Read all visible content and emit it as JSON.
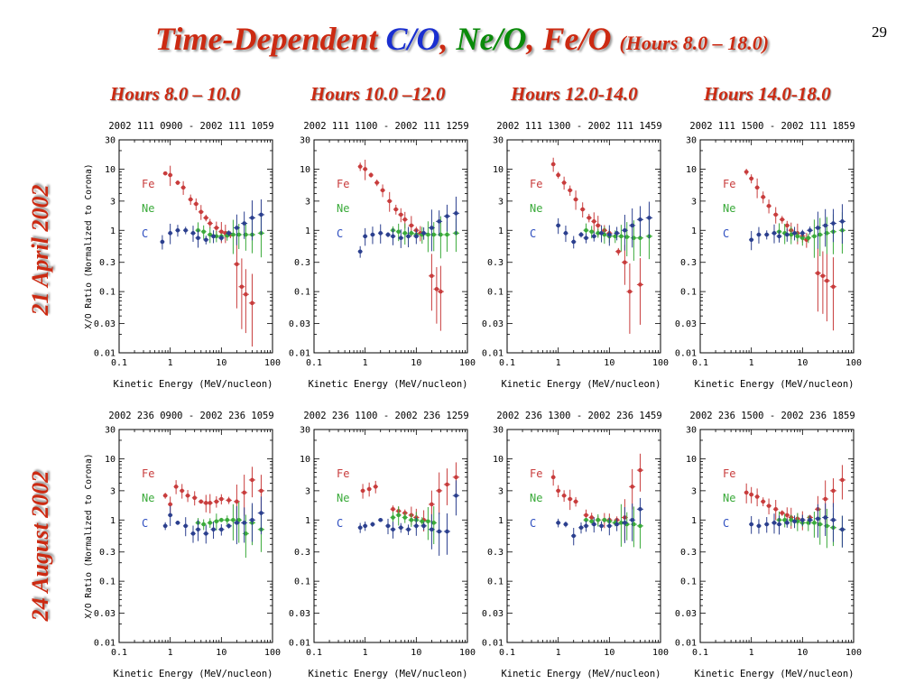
{
  "slide": {
    "title_prefix": "Time-Dependent",
    "title_co": "C/O",
    "title_sep1": ",",
    "title_ne": "Ne/O",
    "title_sep2": ",",
    "title_fe": "Fe/O",
    "title_hours": "(Hours 8.0 – 18.0)",
    "page_number": "29",
    "column_headers": [
      "Hours 8.0 – 10.0",
      "Hours 10.0 –12.0",
      "Hours 12.0-14.0",
      "Hours 14.0-18.0"
    ],
    "row_labels": [
      "21 April 2002",
      "24 August 2002"
    ]
  },
  "colors": {
    "title": "#cc2a12",
    "Fe": "#c83c3c",
    "Ne": "#3aaa3a",
    "C": "#2b3f8e",
    "C_label": "#3050c0",
    "axis": "#000000"
  },
  "axis_text": {
    "xlabel": "Kinetic Energy (MeV/nucleon)",
    "ylabel": "X/O Ratio (Normalized to Corona)",
    "x_ticks": [
      "0.1",
      "1",
      "10",
      "100"
    ],
    "y_ticks": [
      "30",
      "10",
      "3",
      "1",
      "0.3",
      "0.1",
      "0.03",
      "0.01"
    ],
    "element_labels": [
      "Fe",
      "Ne",
      "C"
    ]
  },
  "chart_data": [
    {
      "type": "scatter",
      "title": "2002 111 0900 - 2002 111 1059",
      "xlabel": "Kinetic Energy (MeV/nucleon)",
      "ylabel": "X/O Ratio (Normalized to Corona)",
      "xscale": "log",
      "yscale": "log",
      "xlim": [
        0.1,
        100
      ],
      "ylim": [
        0.01,
        30
      ],
      "series": [
        {
          "name": "Fe",
          "x": [
            0.8,
            1.0,
            1.4,
            1.8,
            2.5,
            3.2,
            4.0,
            5.0,
            6.0,
            8.0,
            10,
            12,
            15,
            20,
            25,
            30,
            40
          ],
          "y": [
            8.5,
            8,
            6,
            5,
            3.2,
            2.7,
            2.0,
            1.6,
            1.3,
            1.1,
            0.95,
            0.9,
            0.85,
            0.28,
            0.12,
            0.09,
            0.065
          ]
        },
        {
          "name": "Ne",
          "x": [
            3.5,
            4.5,
            6,
            8,
            10,
            13,
            17,
            22,
            30,
            40,
            60
          ],
          "y": [
            1.0,
            0.95,
            0.85,
            0.8,
            0.8,
            0.82,
            0.85,
            0.85,
            0.85,
            0.85,
            0.9
          ]
        },
        {
          "name": "C",
          "x": [
            0.7,
            1.0,
            1.4,
            2.0,
            2.8,
            3.5,
            5.0,
            7.0,
            10,
            14,
            20,
            28,
            40,
            60
          ],
          "y": [
            0.65,
            0.9,
            1.0,
            1.0,
            0.9,
            0.75,
            0.7,
            0.8,
            0.75,
            0.9,
            1.1,
            1.3,
            1.6,
            1.8
          ]
        }
      ]
    },
    {
      "type": "scatter",
      "title": "2002 111 1100 - 2002 111 1259",
      "xlabel": "Kinetic Energy (MeV/nucleon)",
      "ylabel": "X/O Ratio (Normalized to Corona)",
      "xscale": "log",
      "yscale": "log",
      "xlim": [
        0.1,
        100
      ],
      "ylim": [
        0.01,
        30
      ],
      "series": [
        {
          "name": "Fe",
          "x": [
            0.8,
            1.0,
            1.3,
            1.7,
            2.2,
            3.0,
            4.0,
            5.0,
            6.0,
            8.0,
            10,
            12,
            20,
            25,
            30
          ],
          "y": [
            11,
            10,
            8,
            6,
            4.5,
            3.0,
            2.2,
            1.8,
            1.5,
            1.2,
            1.0,
            0.9,
            0.18,
            0.11,
            0.1
          ]
        },
        {
          "name": "Ne",
          "x": [
            3.5,
            4.5,
            6,
            8,
            10,
            13,
            17,
            22,
            30,
            40,
            60
          ],
          "y": [
            1.0,
            0.95,
            0.9,
            0.9,
            0.85,
            0.85,
            0.85,
            0.85,
            0.85,
            0.85,
            0.9
          ]
        },
        {
          "name": "C",
          "x": [
            0.8,
            1.0,
            1.4,
            2.0,
            2.8,
            3.5,
            5.0,
            7.0,
            10,
            14,
            20,
            28,
            40,
            60
          ],
          "y": [
            0.45,
            0.8,
            0.85,
            0.9,
            0.85,
            0.8,
            0.75,
            0.8,
            0.8,
            0.9,
            1.1,
            1.4,
            1.7,
            1.9
          ]
        }
      ]
    },
    {
      "type": "scatter",
      "title": "2002 111 1300 - 2002 111 1459",
      "xlabel": "Kinetic Energy (MeV/nucleon)",
      "ylabel": "X/O Ratio (Normalized to Corona)",
      "xscale": "log",
      "yscale": "log",
      "xlim": [
        0.1,
        100
      ],
      "ylim": [
        0.01,
        30
      ],
      "series": [
        {
          "name": "Fe",
          "x": [
            0.8,
            1.0,
            1.3,
            1.7,
            2.2,
            3.0,
            4.0,
            5.0,
            6.0,
            8.0,
            10,
            15,
            20,
            25,
            40
          ],
          "y": [
            12,
            8,
            6,
            4.5,
            3.2,
            2.2,
            1.6,
            1.4,
            1.2,
            1.0,
            0.9,
            0.45,
            0.3,
            0.1,
            0.13
          ]
        },
        {
          "name": "Ne",
          "x": [
            3.5,
            4.5,
            6,
            8,
            10,
            13,
            17,
            22,
            30,
            40,
            60
          ],
          "y": [
            1.0,
            0.95,
            0.9,
            0.85,
            0.8,
            0.8,
            0.8,
            0.78,
            0.75,
            0.75,
            0.8
          ]
        },
        {
          "name": "C",
          "x": [
            1.0,
            1.4,
            2.0,
            2.8,
            3.5,
            5.0,
            7.0,
            10,
            14,
            20,
            28,
            40,
            60
          ],
          "y": [
            1.2,
            0.9,
            0.65,
            0.85,
            0.75,
            0.8,
            0.9,
            0.85,
            0.9,
            1.0,
            1.2,
            1.5,
            1.6
          ]
        }
      ]
    },
    {
      "type": "scatter",
      "title": "2002 111 1500 - 2002 111 1859",
      "xlabel": "Kinetic Energy (MeV/nucleon)",
      "ylabel": "X/O Ratio (Normalized to Corona)",
      "xscale": "log",
      "yscale": "log",
      "xlim": [
        0.1,
        100
      ],
      "ylim": [
        0.01,
        30
      ],
      "series": [
        {
          "name": "Fe",
          "x": [
            0.8,
            1.0,
            1.3,
            1.7,
            2.2,
            3.0,
            4.0,
            5.0,
            6.0,
            8.0,
            10,
            12,
            20,
            25,
            30,
            40
          ],
          "y": [
            9,
            7,
            5,
            3.5,
            2.5,
            1.8,
            1.5,
            1.2,
            1.0,
            0.9,
            0.8,
            0.7,
            0.2,
            0.18,
            0.15,
            0.12
          ]
        },
        {
          "name": "Ne",
          "x": [
            3.5,
            4.5,
            6,
            8,
            10,
            13,
            17,
            22,
            30,
            40,
            60
          ],
          "y": [
            0.95,
            0.9,
            0.85,
            0.8,
            0.75,
            0.75,
            0.8,
            0.85,
            0.9,
            0.95,
            1.0
          ]
        },
        {
          "name": "C",
          "x": [
            1.0,
            1.4,
            2.0,
            2.8,
            3.5,
            5.0,
            7.0,
            10,
            14,
            20,
            28,
            40,
            60
          ],
          "y": [
            0.7,
            0.85,
            0.85,
            0.9,
            0.8,
            0.85,
            0.9,
            0.9,
            1.0,
            1.1,
            1.2,
            1.3,
            1.4
          ]
        }
      ]
    },
    {
      "type": "scatter",
      "title": "2002 236 0900 - 2002 236 1059",
      "xlabel": "Kinetic Energy (MeV/nucleon)",
      "ylabel": "X/O Ratio (Normalized to Corona)",
      "xscale": "log",
      "yscale": "log",
      "xlim": [
        0.1,
        100
      ],
      "ylim": [
        0.01,
        30
      ],
      "series": [
        {
          "name": "Fe",
          "x": [
            0.8,
            1.0,
            1.3,
            1.7,
            2.2,
            3.0,
            4.0,
            5.0,
            6.0,
            8.0,
            10,
            14,
            20,
            28,
            40,
            60
          ],
          "y": [
            2.5,
            1.8,
            3.5,
            3.0,
            2.5,
            2.3,
            2.0,
            1.9,
            1.9,
            2.0,
            2.2,
            2.1,
            2.0,
            2.8,
            4.5,
            3.0
          ]
        },
        {
          "name": "Ne",
          "x": [
            3.5,
            4.5,
            6,
            8,
            10,
            13,
            17,
            22,
            30,
            40,
            60
          ],
          "y": [
            0.9,
            0.85,
            0.9,
            0.95,
            1.0,
            1.0,
            1.0,
            1.0,
            0.6,
            0.9,
            0.7
          ]
        },
        {
          "name": "C",
          "x": [
            0.8,
            1.0,
            1.4,
            2.0,
            2.8,
            3.5,
            5.0,
            7.0,
            10,
            14,
            20,
            28,
            40,
            60
          ],
          "y": [
            0.8,
            1.2,
            0.9,
            0.8,
            0.6,
            0.7,
            0.6,
            0.7,
            0.7,
            0.8,
            0.9,
            0.9,
            1.0,
            1.3
          ]
        }
      ]
    },
    {
      "type": "scatter",
      "title": "2002 236 1100 - 2002 236 1259",
      "xlabel": "Kinetic Energy (MeV/nucleon)",
      "ylabel": "X/O Ratio (Normalized to Corona)",
      "xscale": "log",
      "yscale": "log",
      "xlim": [
        0.1,
        100
      ],
      "ylim": [
        0.01,
        30
      ],
      "series": [
        {
          "name": "Fe",
          "x": [
            0.9,
            1.2,
            1.6,
            3.5,
            4.5,
            6,
            8,
            10,
            14,
            20,
            28,
            40,
            60
          ],
          "y": [
            3.0,
            3.2,
            3.5,
            1.5,
            1.4,
            1.3,
            1.2,
            1.1,
            1.0,
            1.8,
            3.0,
            3.8,
            5.0
          ]
        },
        {
          "name": "Ne",
          "x": [
            3.5,
            4.5,
            6,
            8,
            10,
            13,
            17,
            22
          ],
          "y": [
            1.1,
            1.2,
            1.1,
            1.0,
            1.0,
            0.95,
            0.95,
            0.9
          ]
        },
        {
          "name": "C",
          "x": [
            0.8,
            1.0,
            1.4,
            2.0,
            2.8,
            3.5,
            5.0,
            7.0,
            10,
            14,
            20,
            28,
            40,
            60
          ],
          "y": [
            0.75,
            0.8,
            0.85,
            1.0,
            0.8,
            0.7,
            0.75,
            0.7,
            0.8,
            0.8,
            0.7,
            0.65,
            0.65,
            2.5
          ]
        }
      ]
    },
    {
      "type": "scatter",
      "title": "2002 236 1300 - 2002 236 1459",
      "xlabel": "Kinetic Energy (MeV/nucleon)",
      "ylabel": "X/O Ratio (Normalized to Corona)",
      "xscale": "log",
      "yscale": "log",
      "xlim": [
        0.1,
        100
      ],
      "ylim": [
        0.01,
        30
      ],
      "series": [
        {
          "name": "Fe",
          "x": [
            0.8,
            1.0,
            1.3,
            1.7,
            2.2,
            3.5,
            4.5,
            6,
            8,
            10,
            14,
            20,
            28,
            40
          ],
          "y": [
            5.0,
            3.0,
            2.5,
            2.2,
            2.0,
            1.2,
            1.1,
            1.0,
            1.0,
            1.0,
            1.0,
            1.1,
            3.5,
            6.5
          ]
        },
        {
          "name": "Ne",
          "x": [
            3.5,
            4.5,
            6,
            8,
            10,
            13,
            17,
            22,
            30,
            40
          ],
          "y": [
            1.0,
            0.95,
            1.0,
            1.0,
            0.95,
            0.9,
            0.9,
            0.85,
            0.85,
            0.8
          ]
        },
        {
          "name": "C",
          "x": [
            1.0,
            1.4,
            2.0,
            2.8,
            3.5,
            5.0,
            7.0,
            10,
            14,
            20,
            28,
            40
          ],
          "y": [
            0.9,
            0.85,
            0.55,
            0.75,
            0.8,
            0.85,
            0.8,
            0.8,
            0.85,
            0.9,
            1.0,
            1.5
          ]
        }
      ]
    },
    {
      "type": "scatter",
      "title": "2002 236 1500 - 2002 236 1859",
      "xlabel": "Kinetic Energy (MeV/nucleon)",
      "ylabel": "X/O Ratio (Normalized to Corona)",
      "xscale": "log",
      "yscale": "log",
      "xlim": [
        0.1,
        100
      ],
      "ylim": [
        0.01,
        30
      ],
      "series": [
        {
          "name": "Fe",
          "x": [
            0.8,
            1.0,
            1.3,
            1.7,
            2.2,
            3.0,
            4.0,
            5.0,
            6.0,
            8.0,
            10,
            14,
            20,
            28,
            40,
            60
          ],
          "y": [
            2.8,
            2.6,
            2.4,
            2.0,
            1.7,
            1.5,
            1.3,
            1.2,
            1.1,
            1.05,
            1.0,
            1.1,
            1.5,
            2.2,
            3.0,
            4.5
          ]
        },
        {
          "name": "Ne",
          "x": [
            3.5,
            4.5,
            6,
            8,
            10,
            13,
            17,
            22,
            30,
            40,
            60
          ],
          "y": [
            1.0,
            1.0,
            1.0,
            0.95,
            0.9,
            0.9,
            0.9,
            0.85,
            0.8,
            0.75,
            0.7
          ]
        },
        {
          "name": "C",
          "x": [
            1.0,
            1.4,
            2.0,
            2.8,
            3.5,
            5.0,
            7.0,
            10,
            14,
            20,
            28,
            40,
            60
          ],
          "y": [
            0.85,
            0.8,
            0.85,
            0.9,
            0.85,
            0.9,
            0.95,
            1.0,
            1.0,
            1.05,
            1.1,
            1.0,
            0.7
          ]
        }
      ]
    }
  ]
}
